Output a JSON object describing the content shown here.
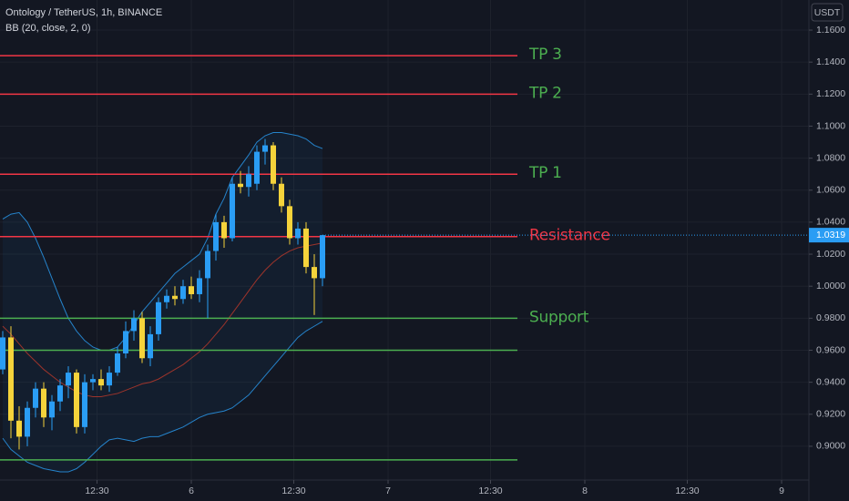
{
  "chart_data": {
    "type": "candlestick",
    "title": "Ontology / TetherUS, 1h, BINANCE",
    "indicator": "BB (20, close, 2, 0)",
    "y_unit": "USDT",
    "up_color": "#2a9df4",
    "down_color": "#f5d33b",
    "x": [
      5.0417,
      5.0833,
      5.125,
      5.1667,
      5.2083,
      5.25,
      5.2917,
      5.3333,
      5.375,
      5.4167,
      5.4583,
      5.5,
      5.5417,
      5.5833,
      5.625,
      5.6667,
      5.7083,
      5.75,
      5.7917,
      5.8333,
      5.875,
      5.9167,
      5.9583,
      6.0,
      6.0417,
      6.0833,
      6.125,
      6.1667,
      6.2083,
      6.25,
      6.2917,
      6.3333,
      6.375,
      6.4167,
      6.4583,
      6.5,
      6.5417,
      6.5833,
      6.625,
      6.6667
    ],
    "open": [
      0.948,
      0.968,
      0.916,
      0.906,
      0.924,
      0.936,
      0.918,
      0.928,
      0.938,
      0.946,
      0.912,
      0.94,
      0.942,
      0.938,
      0.946,
      0.958,
      0.972,
      0.98,
      0.955,
      0.97,
      0.99,
      0.994,
      0.992,
      1.0,
      0.995,
      1.005,
      1.022,
      1.04,
      1.03,
      1.064,
      1.062,
      1.064,
      1.084,
      1.088,
      1.064,
      1.05,
      1.03,
      1.036,
      1.012,
      1.005
    ],
    "high": [
      0.972,
      0.975,
      0.925,
      0.928,
      0.94,
      0.94,
      0.932,
      0.942,
      0.95,
      0.948,
      0.945,
      0.945,
      0.948,
      0.95,
      0.962,
      0.978,
      0.985,
      0.984,
      0.975,
      0.993,
      0.998,
      1.0,
      1.004,
      1.006,
      1.01,
      1.026,
      1.045,
      1.044,
      1.068,
      1.072,
      1.075,
      1.088,
      1.092,
      1.09,
      1.068,
      1.054,
      1.04,
      1.04,
      1.02,
      1.032
    ],
    "low": [
      0.945,
      0.905,
      0.898,
      0.9,
      0.918,
      0.912,
      0.91,
      0.922,
      0.93,
      0.908,
      0.908,
      0.935,
      0.935,
      0.934,
      0.944,
      0.955,
      0.966,
      0.952,
      0.95,
      0.966,
      0.986,
      0.988,
      0.989,
      0.992,
      0.99,
      0.98,
      1.016,
      1.024,
      1.028,
      1.058,
      1.056,
      1.06,
      1.076,
      1.06,
      1.046,
      1.026,
      1.026,
      1.008,
      0.982,
      1.0
    ],
    "close": [
      0.968,
      0.916,
      0.906,
      0.924,
      0.936,
      0.918,
      0.928,
      0.938,
      0.946,
      0.912,
      0.94,
      0.942,
      0.938,
      0.946,
      0.958,
      0.972,
      0.98,
      0.955,
      0.97,
      0.99,
      0.994,
      0.992,
      1.0,
      0.995,
      1.005,
      1.022,
      1.04,
      1.03,
      1.064,
      1.062,
      1.07,
      1.084,
      1.088,
      1.064,
      1.05,
      1.03,
      1.036,
      1.012,
      1.005,
      1.0319
    ],
    "bollinger": {
      "band_color": "#2a9df4",
      "basis_color": "#c0392b",
      "fill_color": "#2a9df4",
      "upper": [
        1.042,
        1.045,
        1.046,
        1.04,
        1.03,
        1.018,
        1.005,
        0.992,
        0.98,
        0.972,
        0.966,
        0.962,
        0.96,
        0.96,
        0.962,
        0.968,
        0.976,
        0.984,
        0.99,
        0.996,
        1.002,
        1.008,
        1.012,
        1.016,
        1.02,
        1.03,
        1.045,
        1.055,
        1.068,
        1.075,
        1.082,
        1.09,
        1.094,
        1.096,
        1.096,
        1.095,
        1.094,
        1.092,
        1.088,
        1.086
      ],
      "basis": [
        0.975,
        0.97,
        0.964,
        0.958,
        0.953,
        0.948,
        0.944,
        0.94,
        0.937,
        0.934,
        0.932,
        0.931,
        0.931,
        0.932,
        0.933,
        0.935,
        0.937,
        0.939,
        0.94,
        0.942,
        0.945,
        0.948,
        0.951,
        0.955,
        0.959,
        0.964,
        0.97,
        0.976,
        0.983,
        0.99,
        0.997,
        1.004,
        1.01,
        1.015,
        1.019,
        1.022,
        1.024,
        1.025,
        1.026,
        1.027
      ],
      "lower": [
        0.905,
        0.898,
        0.894,
        0.89,
        0.888,
        0.886,
        0.885,
        0.884,
        0.884,
        0.886,
        0.89,
        0.895,
        0.9,
        0.904,
        0.905,
        0.904,
        0.903,
        0.905,
        0.906,
        0.906,
        0.908,
        0.91,
        0.912,
        0.915,
        0.918,
        0.92,
        0.921,
        0.922,
        0.924,
        0.928,
        0.932,
        0.938,
        0.944,
        0.95,
        0.956,
        0.962,
        0.968,
        0.972,
        0.975,
        0.978
      ]
    },
    "levels": [
      {
        "label": "TP 3",
        "value": 1.144,
        "color": "#f23645",
        "label_color": "#4caf50"
      },
      {
        "label": "TP 2",
        "value": 1.12,
        "color": "#f23645",
        "label_color": "#4caf50"
      },
      {
        "label": "TP 1",
        "value": 1.07,
        "color": "#f23645",
        "label_color": "#4caf50"
      },
      {
        "label": "Resistance",
        "value": 1.031,
        "color": "#f23645",
        "label_color": "#f23645"
      },
      {
        "label": "Support",
        "value": 0.98,
        "color": "#4caf50",
        "label_color": "#4caf50"
      },
      {
        "value": 0.96,
        "color": "#4caf50"
      },
      {
        "value": 0.8915,
        "color": "#4caf50"
      }
    ],
    "last_price": 1.0319,
    "last_price_color": "#2a9df4",
    "grid": true,
    "xlim": [
      5.0278,
      9.1389
    ],
    "ylim": [
      0.8789,
      1.1788
    ],
    "xticks": [
      {
        "value": 5.5208,
        "label": "12:30"
      },
      6,
      {
        "value": 6.5208,
        "label": "12:30"
      },
      7,
      {
        "value": 7.5208,
        "label": "12:30"
      },
      8,
      {
        "value": 8.5208,
        "label": "12:30"
      },
      9
    ],
    "yticks": [
      {
        "value": 0.9,
        "label": "0.9000"
      },
      {
        "value": 0.92,
        "label": "0.9200"
      },
      {
        "value": 0.94,
        "label": "0.9400"
      },
      {
        "value": 0.96,
        "label": "0.9600"
      },
      {
        "value": 0.98,
        "label": "0.9800"
      },
      {
        "value": 1.0,
        "label": "1.0000"
      },
      {
        "value": 1.02,
        "label": "1.0200"
      },
      {
        "value": 1.04,
        "label": "1.0400"
      },
      {
        "value": 1.06,
        "label": "1.0600"
      },
      {
        "value": 1.08,
        "label": "1.0800"
      },
      {
        "value": 1.1,
        "label": "1.1000"
      },
      {
        "value": 1.12,
        "label": "1.1200"
      },
      {
        "value": 1.14,
        "label": "1.1400"
      },
      {
        "value": 1.16,
        "label": "1.1600"
      }
    ]
  }
}
